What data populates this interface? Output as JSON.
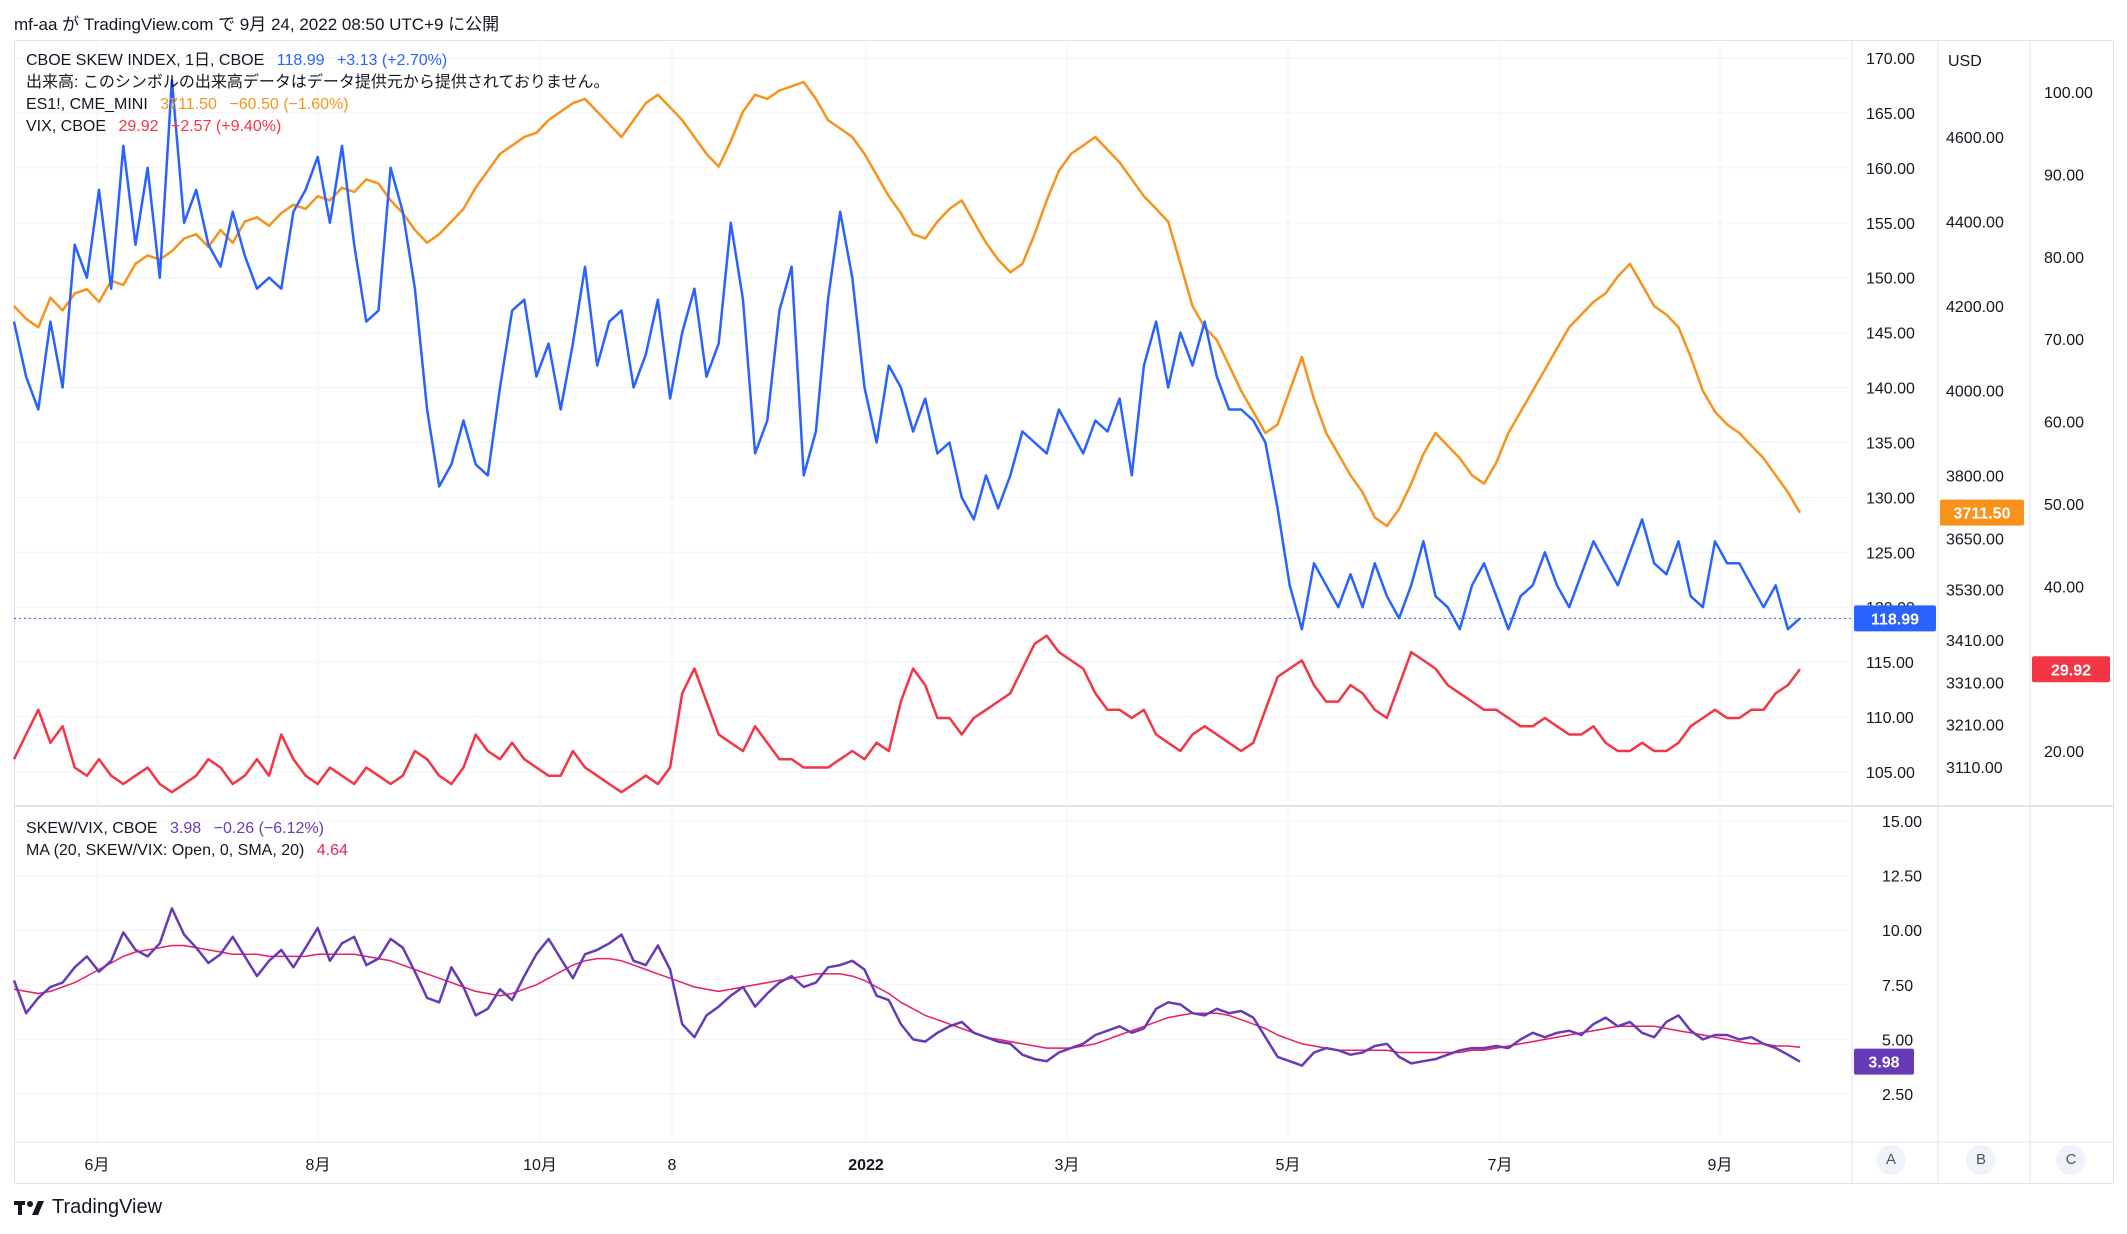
{
  "header": {
    "text": "mf-aa が TradingView.com で 9月 24, 2022 08:50 UTC+9 に公開"
  },
  "colors": {
    "skew": "#2962ff",
    "es": "#f7931a",
    "vix": "#f23645",
    "ratio": "#673ab7",
    "ma": "#e91e63",
    "grid": "#f0f3fa",
    "axis_text": "#131722"
  },
  "legend_top": {
    "skew": {
      "name": "CBOE SKEW INDEX, 1日, CBOE",
      "value": "118.99",
      "change": "+3.13 (+2.70%)"
    },
    "volume_note": "出来高: このシンボルの出来高データはデータ提供元から提供されておりません。",
    "es": {
      "name": "ES1!, CME_MINI",
      "value": "3711.50",
      "change": "−60.50 (−1.60%)"
    },
    "vix": {
      "name": "VIX, CBOE",
      "value": "29.92",
      "change": "+2.57 (+9.40%)"
    }
  },
  "legend_bottom": {
    "ratio": {
      "name": "SKEW/VIX, CBOE",
      "value": "3.98",
      "change": "−0.26 (−6.12%)"
    },
    "ma": {
      "name": "MA (20, SKEW/VIX: Open, 0, SMA, 20)",
      "value": "4.64"
    }
  },
  "axes": {
    "skew_ticks": [
      "170.00",
      "165.00",
      "160.00",
      "155.00",
      "150.00",
      "145.00",
      "140.00",
      "135.00",
      "130.00",
      "125.00",
      "120.00",
      "115.00",
      "110.00",
      "105.00"
    ],
    "usd_label": "USD",
    "es_ticks": [
      "4600.00",
      "4400.00",
      "4200.00",
      "4000.00",
      "3800.00",
      "3650.00",
      "3530.00",
      "3410.00",
      "3310.00",
      "3210.00",
      "3110.00"
    ],
    "vix_ticks": [
      "100.00",
      "90.00",
      "80.00",
      "70.00",
      "60.00",
      "50.00",
      "40.00",
      "30.00",
      "20.00"
    ],
    "ratio_ticks": [
      "15.00",
      "12.50",
      "10.00",
      "7.50",
      "5.00",
      "2.50"
    ],
    "x_ticks": [
      "6月",
      "8月",
      "10月",
      "8",
      "2022",
      "3月",
      "5月",
      "7月",
      "9月"
    ],
    "scale_buttons": [
      "A",
      "B",
      "C"
    ]
  },
  "badges": {
    "skew": "118.99",
    "es": "3711.50",
    "vix": "29.92",
    "ratio": "3.98"
  },
  "footer": {
    "brand": "TradingView"
  },
  "chart_data": [
    {
      "type": "line",
      "title": "",
      "x_range": [
        "2021-05",
        "2022-09-23"
      ],
      "series": [
        {
          "name": "CBOE SKEW INDEX",
          "axis": "left (105–170)",
          "values": [
            146,
            141,
            138,
            146,
            140,
            153,
            150,
            158,
            149,
            162,
            153,
            160,
            150,
            168,
            155,
            158,
            153,
            151,
            156,
            152,
            149,
            150,
            149,
            156,
            158,
            161,
            155,
            162,
            153,
            146,
            147,
            160,
            156,
            149,
            138,
            131,
            133,
            137,
            133,
            132,
            140,
            147,
            148,
            141,
            144,
            138,
            144,
            151,
            142,
            146,
            147,
            140,
            143,
            148,
            139,
            145,
            149,
            141,
            144,
            155,
            148,
            134,
            137,
            147,
            151,
            132,
            136,
            148,
            156,
            150,
            140,
            135,
            142,
            140,
            136,
            139,
            134,
            135,
            130,
            128,
            132,
            129,
            132,
            136,
            135,
            134,
            138,
            136,
            134,
            137,
            136,
            139,
            132,
            142,
            146,
            140,
            145,
            142,
            146,
            141,
            138,
            138,
            137,
            135,
            129,
            122,
            118,
            124,
            122,
            120,
            123,
            120,
            124,
            121,
            119,
            122,
            126,
            121,
            120,
            118,
            122,
            124,
            121,
            118,
            121,
            122,
            125,
            122,
            120,
            123,
            126,
            124,
            122,
            125,
            128,
            124,
            123,
            126,
            121,
            120,
            126,
            124,
            124,
            122,
            120,
            122,
            118,
            118.99
          ]
        },
        {
          "name": "ES1!, CME_MINI",
          "axis": "ES (3110–4600)",
          "values": [
            4200,
            4170,
            4150,
            4220,
            4190,
            4230,
            4240,
            4210,
            4260,
            4250,
            4300,
            4320,
            4310,
            4330,
            4360,
            4370,
            4340,
            4380,
            4350,
            4400,
            4410,
            4390,
            4420,
            4440,
            4430,
            4460,
            4450,
            4480,
            4470,
            4500,
            4490,
            4450,
            4420,
            4380,
            4350,
            4370,
            4400,
            4430,
            4480,
            4520,
            4560,
            4580,
            4600,
            4610,
            4640,
            4660,
            4680,
            4690,
            4660,
            4630,
            4600,
            4640,
            4680,
            4700,
            4670,
            4640,
            4600,
            4560,
            4530,
            4590,
            4660,
            4700,
            4690,
            4710,
            4720,
            4730,
            4690,
            4640,
            4620,
            4600,
            4560,
            4510,
            4460,
            4420,
            4370,
            4360,
            4400,
            4430,
            4450,
            4400,
            4350,
            4310,
            4280,
            4300,
            4370,
            4450,
            4520,
            4560,
            4580,
            4600,
            4570,
            4540,
            4500,
            4460,
            4430,
            4400,
            4300,
            4200,
            4150,
            4120,
            4060,
            4000,
            3950,
            3900,
            3920,
            4000,
            4080,
            3980,
            3900,
            3850,
            3800,
            3760,
            3700,
            3680,
            3720,
            3780,
            3850,
            3900,
            3870,
            3840,
            3800,
            3780,
            3830,
            3900,
            3950,
            4000,
            4050,
            4100,
            4150,
            4180,
            4210,
            4230,
            4270,
            4300,
            4250,
            4200,
            4180,
            4150,
            4080,
            4000,
            3950,
            3920,
            3900,
            3870,
            3840,
            3800,
            3760,
            3711.5
          ]
        },
        {
          "name": "VIX, CBOE",
          "axis": "right (20–100)",
          "values": [
            19,
            22,
            25,
            21,
            23,
            18,
            17,
            19,
            17,
            16,
            17,
            18,
            16,
            15,
            16,
            17,
            19,
            18,
            16,
            17,
            19,
            17,
            22,
            19,
            17,
            16,
            18,
            17,
            16,
            18,
            17,
            16,
            17,
            20,
            19,
            17,
            16,
            18,
            22,
            20,
            19,
            21,
            19,
            18,
            17,
            17,
            20,
            18,
            17,
            16,
            15,
            16,
            17,
            16,
            18,
            27,
            30,
            26,
            22,
            21,
            20,
            23,
            21,
            19,
            19,
            18,
            18,
            18,
            19,
            20,
            19,
            21,
            20,
            26,
            30,
            28,
            24,
            24,
            22,
            24,
            25,
            26,
            27,
            30,
            33,
            34,
            32,
            31,
            30,
            27,
            25,
            25,
            24,
            25,
            22,
            21,
            20,
            22,
            23,
            22,
            21,
            20,
            21,
            25,
            29,
            30,
            31,
            28,
            26,
            26,
            28,
            27,
            25,
            24,
            28,
            32,
            31,
            30,
            28,
            27,
            26,
            25,
            25,
            24,
            23,
            23,
            24,
            23,
            22,
            22,
            23,
            21,
            20,
            20,
            21,
            20,
            20,
            21,
            23,
            24,
            25,
            24,
            24,
            25,
            25,
            27,
            28,
            29.92
          ]
        },
        {
          "name": "SKEW/VIX, CBOE",
          "axis": "lower (2.5–15)",
          "values": [
            7.7,
            6.2,
            6.9,
            7.4,
            7.6,
            8.3,
            8.8,
            8.1,
            8.6,
            9.9,
            9.1,
            8.8,
            9.4,
            11.0,
            9.8,
            9.2,
            8.5,
            8.9,
            9.7,
            8.8,
            7.9,
            8.6,
            9.1,
            8.3,
            9.2,
            10.1,
            8.6,
            9.4,
            9.7,
            8.4,
            8.7,
            9.6,
            9.2,
            8.1,
            6.9,
            6.7,
            8.3,
            7.4,
            6.1,
            6.4,
            7.3,
            6.8,
            7.9,
            8.9,
            9.6,
            8.7,
            7.8,
            8.9,
            9.1,
            9.4,
            9.8,
            8.6,
            8.4,
            9.3,
            8.2,
            5.7,
            5.1,
            6.1,
            6.5,
            7.0,
            7.4,
            6.5,
            7.1,
            7.6,
            7.9,
            7.4,
            7.6,
            8.3,
            8.4,
            8.6,
            8.2,
            7.0,
            6.8,
            5.7,
            5.0,
            4.9,
            5.3,
            5.6,
            5.8,
            5.3,
            5.1,
            4.9,
            4.8,
            4.3,
            4.1,
            4.0,
            4.4,
            4.6,
            4.8,
            5.2,
            5.4,
            5.6,
            5.3,
            5.5,
            6.4,
            6.7,
            6.6,
            6.2,
            6.1,
            6.4,
            6.2,
            6.3,
            6.0,
            5.1,
            4.2,
            4.0,
            3.8,
            4.4,
            4.6,
            4.5,
            4.3,
            4.4,
            4.7,
            4.8,
            4.2,
            3.9,
            4.0,
            4.1,
            4.3,
            4.5,
            4.6,
            4.6,
            4.7,
            4.6,
            5.0,
            5.3,
            5.1,
            5.3,
            5.4,
            5.2,
            5.7,
            6.0,
            5.6,
            5.8,
            5.3,
            5.1,
            5.8,
            6.1,
            5.4,
            5.0,
            5.2,
            5.2,
            5.0,
            5.1,
            4.8,
            4.6,
            4.3,
            3.98
          ]
        },
        {
          "name": "MA (20, SKEW/VIX: Open, 0, SMA, 20)",
          "axis": "lower (2.5–15)",
          "values": [
            7.3,
            7.2,
            7.1,
            7.2,
            7.4,
            7.6,
            7.9,
            8.2,
            8.5,
            8.8,
            9.0,
            9.1,
            9.2,
            9.3,
            9.3,
            9.2,
            9.1,
            9.0,
            8.9,
            8.9,
            8.9,
            8.8,
            8.8,
            8.8,
            8.8,
            8.9,
            8.9,
            8.9,
            8.9,
            8.8,
            8.7,
            8.6,
            8.4,
            8.2,
            8.0,
            7.8,
            7.6,
            7.4,
            7.2,
            7.1,
            7.0,
            7.1,
            7.3,
            7.5,
            7.8,
            8.1,
            8.4,
            8.6,
            8.7,
            8.7,
            8.6,
            8.4,
            8.2,
            8.0,
            7.8,
            7.6,
            7.4,
            7.3,
            7.2,
            7.3,
            7.4,
            7.5,
            7.6,
            7.7,
            7.8,
            7.9,
            8.0,
            8.0,
            8.0,
            7.9,
            7.7,
            7.4,
            7.1,
            6.7,
            6.4,
            6.1,
            5.9,
            5.7,
            5.5,
            5.3,
            5.1,
            5.0,
            4.9,
            4.8,
            4.7,
            4.6,
            4.6,
            4.6,
            4.7,
            4.8,
            5.0,
            5.2,
            5.4,
            5.6,
            5.8,
            6.0,
            6.1,
            6.2,
            6.2,
            6.2,
            6.1,
            5.9,
            5.7,
            5.5,
            5.2,
            5.0,
            4.8,
            4.7,
            4.6,
            4.5,
            4.5,
            4.5,
            4.5,
            4.5,
            4.4,
            4.4,
            4.4,
            4.4,
            4.4,
            4.4,
            4.5,
            4.5,
            4.6,
            4.7,
            4.8,
            4.9,
            5.0,
            5.1,
            5.2,
            5.3,
            5.4,
            5.5,
            5.6,
            5.6,
            5.6,
            5.6,
            5.5,
            5.4,
            5.3,
            5.2,
            5.1,
            5.0,
            4.9,
            4.8,
            4.8,
            4.7,
            4.7,
            4.64
          ]
        }
      ]
    }
  ]
}
